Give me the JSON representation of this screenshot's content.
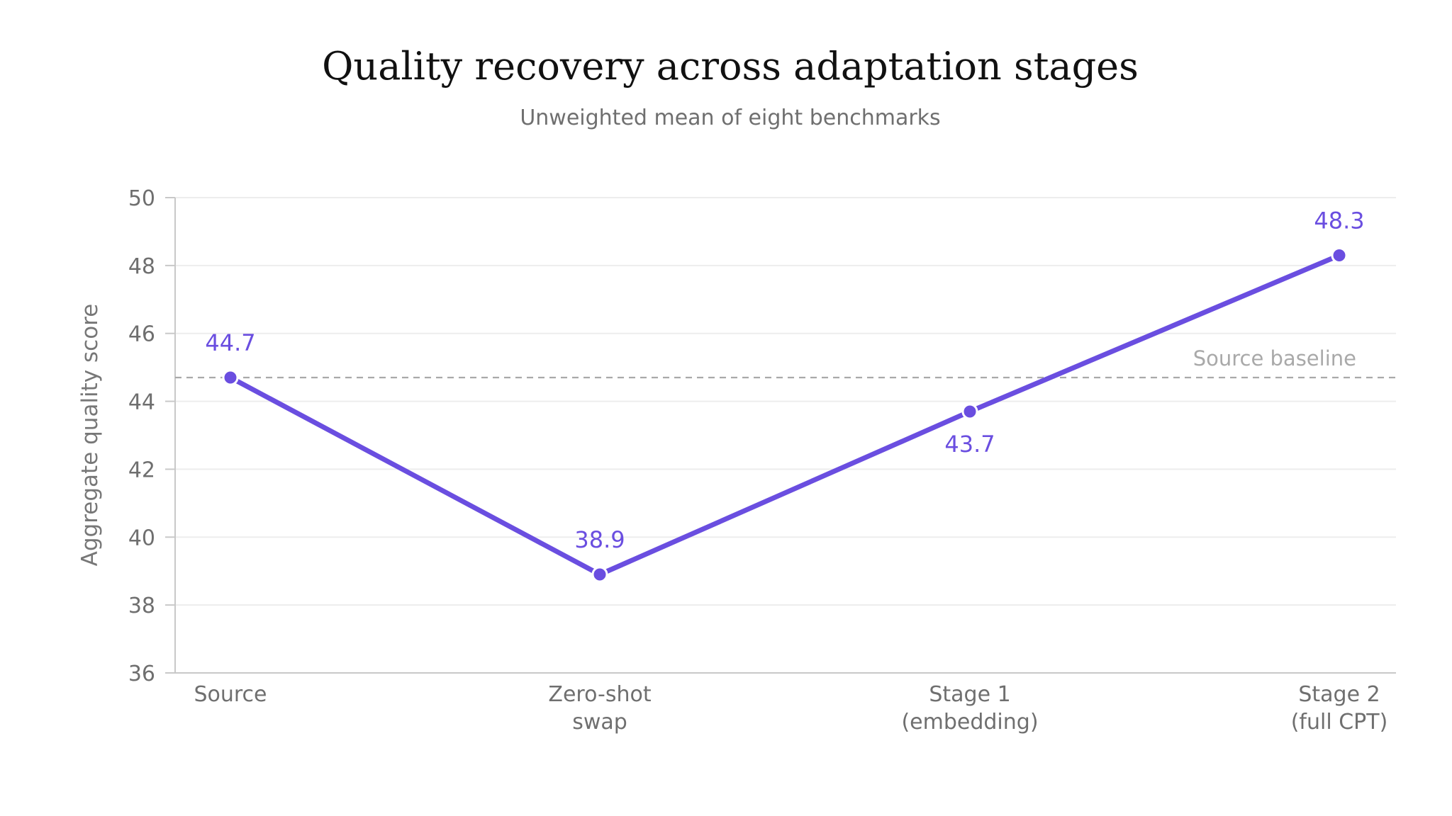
{
  "chart_data": {
    "type": "line",
    "title": "Quality recovery across adaptation stages",
    "subtitle": "Unweighted mean of eight benchmarks",
    "xlabel": "",
    "ylabel": "Aggregate quality score",
    "ylim": [
      36,
      50
    ],
    "yticks": [
      36,
      38,
      40,
      42,
      44,
      46,
      48,
      50
    ],
    "grid": true,
    "categories": [
      [
        "Source"
      ],
      [
        "Zero-shot",
        "swap"
      ],
      [
        "Stage 1",
        "(embedding)"
      ],
      [
        "Stage 2",
        "(full CPT)"
      ]
    ],
    "series": [
      {
        "values": [
          44.7,
          38.9,
          43.7,
          48.3
        ],
        "labels": [
          "44.7",
          "38.9",
          "43.7",
          "48.3"
        ],
        "color": "#6a4ee0"
      }
    ],
    "reference_line": {
      "value": 44.7,
      "label": "Source baseline",
      "style": "dashed",
      "color": "#a9a9a9"
    }
  }
}
